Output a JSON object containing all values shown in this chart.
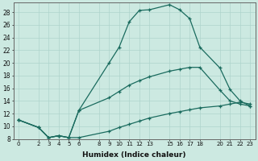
{
  "xlabel": "Humidex (Indice chaleur)",
  "bg_color": "#cce9e1",
  "line_color": "#1a6b5e",
  "grid_color": "#aed4cc",
  "xlim": [
    -0.5,
    23.5
  ],
  "ylim": [
    8,
    29.5
  ],
  "xticks": [
    0,
    2,
    3,
    4,
    5,
    6,
    8,
    9,
    10,
    11,
    12,
    13,
    15,
    16,
    17,
    18,
    20,
    21,
    22,
    23
  ],
  "yticks": [
    8,
    10,
    12,
    14,
    16,
    18,
    20,
    22,
    24,
    26,
    28
  ],
  "line1_x": [
    0,
    2,
    3,
    4,
    5,
    6,
    9,
    10,
    11,
    12,
    13,
    15,
    16,
    17,
    18,
    20,
    21,
    22,
    23
  ],
  "line1_y": [
    11.0,
    9.8,
    8.2,
    8.5,
    8.2,
    12.5,
    20.0,
    22.5,
    26.5,
    28.3,
    28.4,
    29.2,
    28.4,
    27.0,
    22.5,
    19.2,
    15.8,
    14.0,
    13.2
  ],
  "line2_x": [
    0,
    2,
    3,
    4,
    5,
    6,
    9,
    10,
    11,
    12,
    13,
    15,
    16,
    17,
    18,
    20,
    21,
    22,
    23
  ],
  "line2_y": [
    11.0,
    9.8,
    8.2,
    8.5,
    8.2,
    12.5,
    14.5,
    15.5,
    16.5,
    17.2,
    17.8,
    18.7,
    19.0,
    19.3,
    19.3,
    15.7,
    14.0,
    13.5,
    13.2
  ],
  "line3_x": [
    0,
    2,
    3,
    4,
    5,
    6,
    9,
    10,
    11,
    12,
    13,
    15,
    16,
    17,
    18,
    20,
    21,
    22,
    23
  ],
  "line3_y": [
    11.0,
    9.8,
    8.2,
    8.5,
    8.2,
    8.2,
    9.2,
    9.8,
    10.3,
    10.8,
    11.3,
    12.0,
    12.3,
    12.6,
    12.9,
    13.2,
    13.5,
    13.8,
    13.5
  ]
}
